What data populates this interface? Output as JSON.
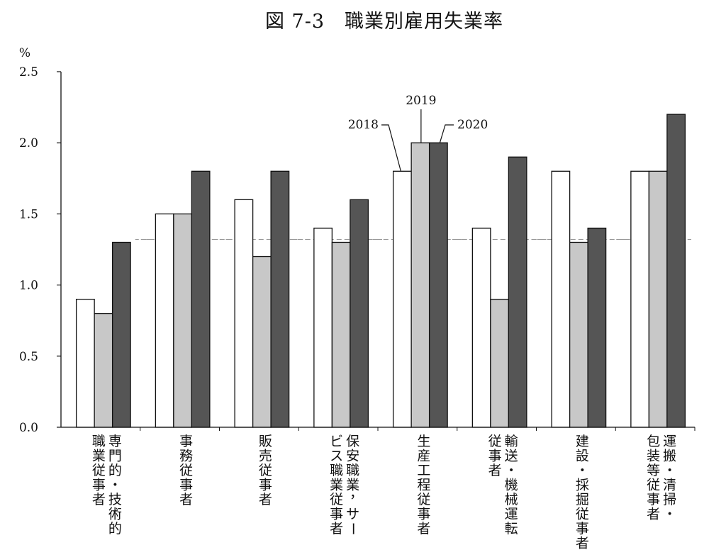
{
  "chart_data": {
    "type": "bar",
    "title": "図 7-3　職業別雇用失業率",
    "ylabel": "%",
    "xlabel": "",
    "ylim": [
      0,
      2.5
    ],
    "yticks": [
      "0.0",
      "0.5",
      "1.0",
      "1.5",
      "2.0",
      "2.5"
    ],
    "reference_line": 1.32,
    "grid": false,
    "categories": [
      "専門的・技術的職業従事者",
      "事務従事者",
      "販売従事者",
      "保安職業，サービス職業従事者",
      "生産工程従事者",
      "輸送・機械運転従事者",
      "建設・採掘従事者",
      "運搬・清掃・包装等従事者"
    ],
    "category_label_columns": [
      [
        "専門的・技術的",
        "職業従事者"
      ],
      [
        "事務従事者"
      ],
      [
        "販売従事者"
      ],
      [
        "保安職業，サー",
        "ビス職業従事者"
      ],
      [
        "生産工程従事者"
      ],
      [
        "輸送・機械運転",
        "従事者"
      ],
      [
        "建設・採掘従事者"
      ],
      [
        "運搬・清掃・",
        "包装等従事者"
      ]
    ],
    "series": [
      {
        "name": "2018",
        "values": [
          0.9,
          1.5,
          1.6,
          1.4,
          1.8,
          1.4,
          1.8,
          1.8
        ]
      },
      {
        "name": "2019",
        "values": [
          0.8,
          1.5,
          1.2,
          1.3,
          2.0,
          0.9,
          1.3,
          1.8
        ]
      },
      {
        "name": "2020",
        "values": [
          1.3,
          1.8,
          1.8,
          1.6,
          2.0,
          1.9,
          1.4,
          2.2
        ]
      }
    ],
    "legend_placement": "annotated above 生産工程従事者 group"
  },
  "colors": {
    "2018": "#ffffff",
    "2019": "#c8c8c8",
    "2020": "#555555",
    "outline": "#111111",
    "reference_line": "#999999"
  }
}
